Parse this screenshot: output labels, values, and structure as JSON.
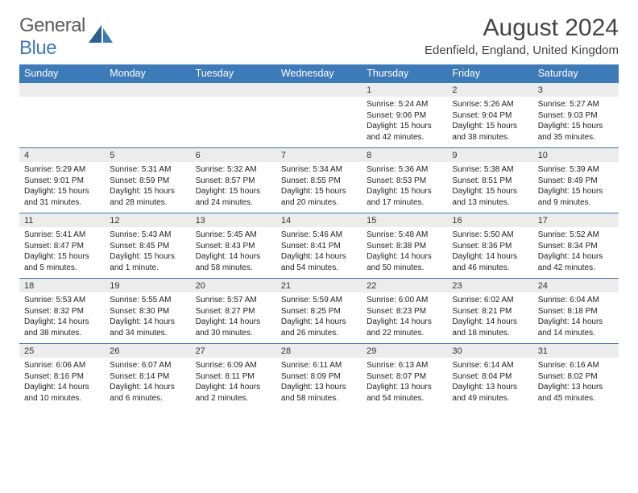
{
  "brand": {
    "part1": "General",
    "part2": "Blue"
  },
  "colors": {
    "brand_blue": "#3d7ab8",
    "header_bg": "#3d7ab8",
    "header_text": "#ffffff",
    "daynum_bg": "#ececec",
    "rule": "#3d7ab8",
    "text": "#333333",
    "page_bg": "#ffffff"
  },
  "title": "August 2024",
  "location": "Edenfield, England, United Kingdom",
  "days_of_week": [
    "Sunday",
    "Monday",
    "Tuesday",
    "Wednesday",
    "Thursday",
    "Friday",
    "Saturday"
  ],
  "weeks": [
    [
      null,
      null,
      null,
      null,
      {
        "n": "1",
        "sr": "5:24 AM",
        "ss": "9:06 PM",
        "dl": "15 hours and 42 minutes."
      },
      {
        "n": "2",
        "sr": "5:26 AM",
        "ss": "9:04 PM",
        "dl": "15 hours and 38 minutes."
      },
      {
        "n": "3",
        "sr": "5:27 AM",
        "ss": "9:03 PM",
        "dl": "15 hours and 35 minutes."
      }
    ],
    [
      {
        "n": "4",
        "sr": "5:29 AM",
        "ss": "9:01 PM",
        "dl": "15 hours and 31 minutes."
      },
      {
        "n": "5",
        "sr": "5:31 AM",
        "ss": "8:59 PM",
        "dl": "15 hours and 28 minutes."
      },
      {
        "n": "6",
        "sr": "5:32 AM",
        "ss": "8:57 PM",
        "dl": "15 hours and 24 minutes."
      },
      {
        "n": "7",
        "sr": "5:34 AM",
        "ss": "8:55 PM",
        "dl": "15 hours and 20 minutes."
      },
      {
        "n": "8",
        "sr": "5:36 AM",
        "ss": "8:53 PM",
        "dl": "15 hours and 17 minutes."
      },
      {
        "n": "9",
        "sr": "5:38 AM",
        "ss": "8:51 PM",
        "dl": "15 hours and 13 minutes."
      },
      {
        "n": "10",
        "sr": "5:39 AM",
        "ss": "8:49 PM",
        "dl": "15 hours and 9 minutes."
      }
    ],
    [
      {
        "n": "11",
        "sr": "5:41 AM",
        "ss": "8:47 PM",
        "dl": "15 hours and 5 minutes."
      },
      {
        "n": "12",
        "sr": "5:43 AM",
        "ss": "8:45 PM",
        "dl": "15 hours and 1 minute."
      },
      {
        "n": "13",
        "sr": "5:45 AM",
        "ss": "8:43 PM",
        "dl": "14 hours and 58 minutes."
      },
      {
        "n": "14",
        "sr": "5:46 AM",
        "ss": "8:41 PM",
        "dl": "14 hours and 54 minutes."
      },
      {
        "n": "15",
        "sr": "5:48 AM",
        "ss": "8:38 PM",
        "dl": "14 hours and 50 minutes."
      },
      {
        "n": "16",
        "sr": "5:50 AM",
        "ss": "8:36 PM",
        "dl": "14 hours and 46 minutes."
      },
      {
        "n": "17",
        "sr": "5:52 AM",
        "ss": "8:34 PM",
        "dl": "14 hours and 42 minutes."
      }
    ],
    [
      {
        "n": "18",
        "sr": "5:53 AM",
        "ss": "8:32 PM",
        "dl": "14 hours and 38 minutes."
      },
      {
        "n": "19",
        "sr": "5:55 AM",
        "ss": "8:30 PM",
        "dl": "14 hours and 34 minutes."
      },
      {
        "n": "20",
        "sr": "5:57 AM",
        "ss": "8:27 PM",
        "dl": "14 hours and 30 minutes."
      },
      {
        "n": "21",
        "sr": "5:59 AM",
        "ss": "8:25 PM",
        "dl": "14 hours and 26 minutes."
      },
      {
        "n": "22",
        "sr": "6:00 AM",
        "ss": "8:23 PM",
        "dl": "14 hours and 22 minutes."
      },
      {
        "n": "23",
        "sr": "6:02 AM",
        "ss": "8:21 PM",
        "dl": "14 hours and 18 minutes."
      },
      {
        "n": "24",
        "sr": "6:04 AM",
        "ss": "8:18 PM",
        "dl": "14 hours and 14 minutes."
      }
    ],
    [
      {
        "n": "25",
        "sr": "6:06 AM",
        "ss": "8:16 PM",
        "dl": "14 hours and 10 minutes."
      },
      {
        "n": "26",
        "sr": "6:07 AM",
        "ss": "8:14 PM",
        "dl": "14 hours and 6 minutes."
      },
      {
        "n": "27",
        "sr": "6:09 AM",
        "ss": "8:11 PM",
        "dl": "14 hours and 2 minutes."
      },
      {
        "n": "28",
        "sr": "6:11 AM",
        "ss": "8:09 PM",
        "dl": "13 hours and 58 minutes."
      },
      {
        "n": "29",
        "sr": "6:13 AM",
        "ss": "8:07 PM",
        "dl": "13 hours and 54 minutes."
      },
      {
        "n": "30",
        "sr": "6:14 AM",
        "ss": "8:04 PM",
        "dl": "13 hours and 49 minutes."
      },
      {
        "n": "31",
        "sr": "6:16 AM",
        "ss": "8:02 PM",
        "dl": "13 hours and 45 minutes."
      }
    ]
  ],
  "labels": {
    "sunrise": "Sunrise: ",
    "sunset": "Sunset: ",
    "daylight": "Daylight: "
  }
}
